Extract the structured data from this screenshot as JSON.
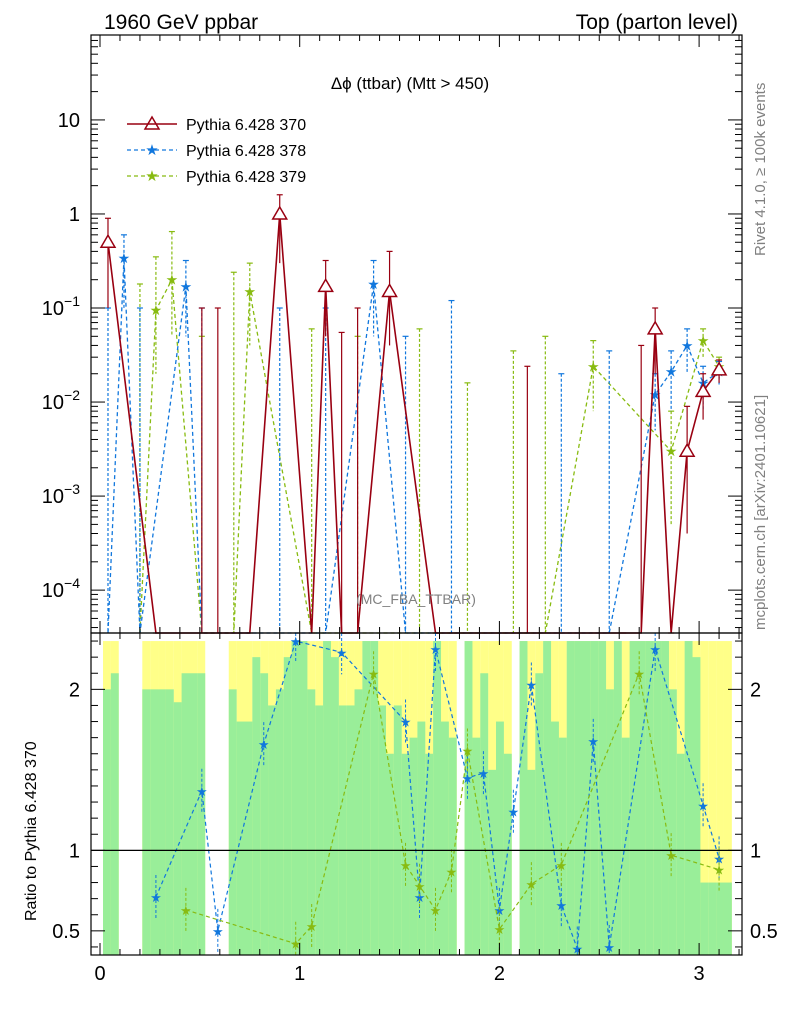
{
  "header": {
    "left": "1960 GeV ppbar",
    "right": "Top (parton level)"
  },
  "side": {
    "top": "Rivet 4.1.0, ≥ 100k events",
    "bottom": "mcplots.cern.ch [arXiv:2401.10621]"
  },
  "colors": {
    "s370": "#990011",
    "s378": "#1177dd",
    "s379": "#88bb11",
    "band_green": "#99ee99",
    "band_yellow": "#ffff88"
  },
  "chart_data": {
    "type": "line",
    "title": "Δϕ (ttbar) (Mtt > 450)",
    "watermark": "(MC_FBA_TTBAR)",
    "xlabel": "",
    "xlim": [
      0,
      3.1416
    ],
    "xticks": [
      "0",
      "1",
      "2",
      "3"
    ],
    "main": {
      "yscale": "log",
      "ylim": [
        3.5e-05,
        80
      ],
      "yticks": [
        {
          "v": 0.0001,
          "base": "10",
          "exp": "−4"
        },
        {
          "v": 0.001,
          "base": "10",
          "exp": "−3"
        },
        {
          "v": 0.01,
          "base": "10",
          "exp": "−2"
        },
        {
          "v": 0.1,
          "base": "10",
          "exp": "−1"
        },
        {
          "v": 1,
          "base": "1",
          "exp": ""
        },
        {
          "v": 10,
          "base": "10",
          "exp": ""
        }
      ]
    },
    "ratio": {
      "ylabel": "Ratio to Pythia 6.428 370",
      "ylim": [
        0.35,
        2.35
      ],
      "yticks": [
        "0.5",
        "1",
        "2"
      ],
      "band_green": [
        2.0,
        2.1,
        0,
        0,
        0,
        2.0,
        2.0,
        2.0,
        2.0,
        1.92,
        2.1,
        2.1,
        2.1,
        0,
        0,
        0,
        2.0,
        1.8,
        1.8,
        2.2,
        2.1,
        1.9,
        2.0,
        2.2,
        2.3,
        2.3,
        2.0,
        1.9,
        2.3,
        2.2,
        1.9,
        1.9,
        2.0,
        2.3,
        2.3,
        1.9,
        1.6,
        1.9,
        1.6,
        1.7,
        1.8,
        1.6,
        2.3,
        1.8,
        1.7,
        0,
        2.3,
        1.7,
        2.1,
        1.5,
        1.8,
        1.6,
        0,
        2.3,
        1.5,
        2.1,
        2.3,
        1.8,
        1.7,
        2.3,
        2.3,
        2.3,
        2.3,
        2.3,
        2.0,
        2.3,
        1.7,
        2.3,
        2.3,
        2.3,
        2.3,
        2.3,
        2.0,
        1.6,
        2.3,
        2.2,
        0.8,
        0.8,
        0.8,
        0.8
      ],
      "band_yellow": [
        2.3,
        2.3,
        0,
        0,
        0,
        2.3,
        2.3,
        2.3,
        2.3,
        2.3,
        2.3,
        2.3,
        2.3,
        0,
        0,
        0,
        2.3,
        2.3,
        2.3,
        2.3,
        2.3,
        2.3,
        2.3,
        2.3,
        2.3,
        2.3,
        2.3,
        2.3,
        2.3,
        2.3,
        2.3,
        2.3,
        2.3,
        2.3,
        2.3,
        2.3,
        2.3,
        2.3,
        2.3,
        2.3,
        2.3,
        2.3,
        2.3,
        2.3,
        2.3,
        0,
        2.3,
        2.3,
        2.3,
        2.3,
        2.3,
        2.3,
        0,
        2.3,
        2.3,
        2.3,
        2.3,
        2.3,
        2.3,
        2.3,
        2.3,
        2.3,
        2.3,
        2.3,
        2.3,
        2.3,
        2.3,
        2.3,
        2.3,
        2.3,
        2.3,
        2.3,
        2.3,
        2.3,
        2.3,
        2.3,
        2.3,
        2.3,
        2.3,
        2.3
      ]
    },
    "series": [
      {
        "name": "Pythia 6.428 370",
        "style": "solid",
        "marker": "triangle",
        "points": [
          {
            "x": 0.04,
            "y": 0.5,
            "lo": 0.1,
            "hi": 0.9
          },
          {
            "x": 0.28,
            "y": 0,
            "lo": 0,
            "hi": 0
          },
          {
            "x": 0.51,
            "y": 0,
            "lo": 0,
            "hi": 0.1
          },
          {
            "x": 0.59,
            "y": 0,
            "lo": 0,
            "hi": 0.1
          },
          {
            "x": 0.75,
            "y": 0,
            "lo": 0,
            "hi": 0
          },
          {
            "x": 0.9,
            "y": 1.0,
            "lo": 0.3,
            "hi": 1.6
          },
          {
            "x": 1.06,
            "y": 0,
            "lo": 0,
            "hi": 0
          },
          {
            "x": 1.13,
            "y": 0.17,
            "lo": 0.05,
            "hi": 0.32
          },
          {
            "x": 1.21,
            "y": 0,
            "lo": 0,
            "hi": 0.055
          },
          {
            "x": 1.29,
            "y": 0,
            "lo": 0,
            "hi": 0.1
          },
          {
            "x": 1.45,
            "y": 0.15,
            "lo": 0.04,
            "hi": 0.4
          },
          {
            "x": 1.68,
            "y": 0,
            "lo": 0,
            "hi": 0
          },
          {
            "x": 2.14,
            "y": 0,
            "lo": 0,
            "hi": 0.024
          },
          {
            "x": 2.62,
            "y": 0,
            "lo": 0,
            "hi": 0
          },
          {
            "x": 2.71,
            "y": 0,
            "lo": 0,
            "hi": 0.04
          },
          {
            "x": 2.78,
            "y": 0.06,
            "lo": 0.02,
            "hi": 0.1
          },
          {
            "x": 2.86,
            "y": 0,
            "lo": 0,
            "hi": 0
          },
          {
            "x": 2.94,
            "y": 0.003,
            "lo": 0.0004,
            "hi": 0.009
          },
          {
            "x": 3.02,
            "y": 0.013,
            "lo": 0.0065,
            "hi": 0.02
          },
          {
            "x": 3.1,
            "y": 0.022,
            "lo": 0.016,
            "hi": 0.028
          }
        ]
      },
      {
        "name": "Pythia 6.428 378",
        "style": "dashed",
        "marker": "star",
        "points": [
          {
            "x": 0.04,
            "y": 0,
            "lo": 0,
            "hi": 0.1
          },
          {
            "x": 0.12,
            "y": 0.34,
            "lo": 0.1,
            "hi": 0.6
          },
          {
            "x": 0.2,
            "y": 0,
            "lo": 0,
            "hi": 0.1
          },
          {
            "x": 0.43,
            "y": 0.17,
            "lo": 0.05,
            "hi": 0.32
          },
          {
            "x": 0.51,
            "y": 0,
            "lo": 0,
            "hi": 0.1
          },
          {
            "x": 0.9,
            "y": 0,
            "lo": 0,
            "hi": 0.1
          },
          {
            "x": 1.13,
            "y": 0,
            "lo": 0,
            "hi": 0.1
          },
          {
            "x": 1.37,
            "y": 0.18,
            "lo": 0.05,
            "hi": 0.32
          },
          {
            "x": 1.53,
            "y": 0,
            "lo": 0,
            "hi": 0.05
          },
          {
            "x": 1.76,
            "y": 0,
            "lo": 0,
            "hi": 0.12
          },
          {
            "x": 2.31,
            "y": 0,
            "lo": 0,
            "hi": 0.02
          },
          {
            "x": 2.55,
            "y": 0,
            "lo": 0,
            "hi": 0.035
          },
          {
            "x": 2.78,
            "y": 0.012,
            "lo": 0.005,
            "hi": 0.02
          },
          {
            "x": 2.86,
            "y": 0.021,
            "lo": 0.008,
            "hi": 0.035
          },
          {
            "x": 2.94,
            "y": 0.04,
            "lo": 0.02,
            "hi": 0.06
          },
          {
            "x": 3.02,
            "y": 0.016,
            "lo": 0.008,
            "hi": 0.024
          },
          {
            "x": 3.1,
            "y": 0.021,
            "lo": 0.015,
            "hi": 0.027
          }
        ]
      },
      {
        "name": "Pythia 6.428 379",
        "style": "dashed",
        "marker": "star",
        "points": [
          {
            "x": 0.2,
            "y": 0,
            "lo": 0,
            "hi": 0.18
          },
          {
            "x": 0.28,
            "y": 0.095,
            "lo": 0.02,
            "hi": 0.35
          },
          {
            "x": 0.36,
            "y": 0.2,
            "lo": 0.05,
            "hi": 0.65
          },
          {
            "x": 0.51,
            "y": 0,
            "lo": 0,
            "hi": 0.05
          },
          {
            "x": 0.67,
            "y": 0,
            "lo": 0,
            "hi": 0.24
          },
          {
            "x": 0.75,
            "y": 0.15,
            "lo": 0.04,
            "hi": 0.3
          },
          {
            "x": 1.06,
            "y": 0,
            "lo": 0,
            "hi": 0.06
          },
          {
            "x": 1.29,
            "y": 0,
            "lo": 0,
            "hi": 0.05
          },
          {
            "x": 1.6,
            "y": 0,
            "lo": 0,
            "hi": 0.06
          },
          {
            "x": 1.84,
            "y": 0,
            "lo": 0,
            "hi": 0.016
          },
          {
            "x": 2.07,
            "y": 0,
            "lo": 0,
            "hi": 0.035
          },
          {
            "x": 2.23,
            "y": 0,
            "lo": 0,
            "hi": 0.05
          },
          {
            "x": 2.47,
            "y": 0.024,
            "lo": 0.008,
            "hi": 0.045
          },
          {
            "x": 2.86,
            "y": 0.003,
            "lo": 0.0005,
            "hi": 0.008
          },
          {
            "x": 3.02,
            "y": 0.045,
            "lo": 0.03,
            "hi": 0.06
          },
          {
            "x": 3.1,
            "y": 0.024,
            "lo": 0.018,
            "hi": 0.03
          }
        ]
      }
    ],
    "ratio_series": [
      {
        "name": "Pythia 6.428 378",
        "points": [
          {
            "x": 0.28,
            "y": 0.71
          },
          {
            "x": 0.51,
            "y": 1.37
          },
          {
            "x": 0.59,
            "y": 0.5
          },
          {
            "x": 0.82,
            "y": 1.66
          },
          {
            "x": 0.98,
            "y": 2.3
          },
          {
            "x": 1.21,
            "y": 2.23
          },
          {
            "x": 1.53,
            "y": 1.8
          },
          {
            "x": 1.6,
            "y": 0.71
          },
          {
            "x": 1.68,
            "y": 2.25
          },
          {
            "x": 1.84,
            "y": 1.45
          },
          {
            "x": 1.92,
            "y": 1.48
          },
          {
            "x": 2.0,
            "y": 0.63
          },
          {
            "x": 2.07,
            "y": 1.24
          },
          {
            "x": 2.16,
            "y": 2.03
          },
          {
            "x": 2.31,
            "y": 0.66
          },
          {
            "x": 2.39,
            "y": 0.39
          },
          {
            "x": 2.47,
            "y": 1.68
          },
          {
            "x": 2.55,
            "y": 0.4
          },
          {
            "x": 2.78,
            "y": 2.25
          },
          {
            "x": 3.02,
            "y": 1.28
          },
          {
            "x": 3.1,
            "y": 0.95
          }
        ]
      },
      {
        "name": "Pythia 6.428 379",
        "points": [
          {
            "x": 0.43,
            "y": 0.63
          },
          {
            "x": 0.98,
            "y": 0.42
          },
          {
            "x": 1.06,
            "y": 0.53
          },
          {
            "x": 1.37,
            "y": 2.1
          },
          {
            "x": 1.53,
            "y": 0.91
          },
          {
            "x": 1.6,
            "y": 0.78
          },
          {
            "x": 1.68,
            "y": 0.63
          },
          {
            "x": 1.76,
            "y": 0.87
          },
          {
            "x": 1.84,
            "y": 1.62
          },
          {
            "x": 2.0,
            "y": 0.51
          },
          {
            "x": 2.16,
            "y": 0.79
          },
          {
            "x": 2.31,
            "y": 0.91
          },
          {
            "x": 2.7,
            "y": 2.1
          },
          {
            "x": 2.86,
            "y": 0.97
          },
          {
            "x": 3.1,
            "y": 0.88
          }
        ]
      }
    ]
  }
}
